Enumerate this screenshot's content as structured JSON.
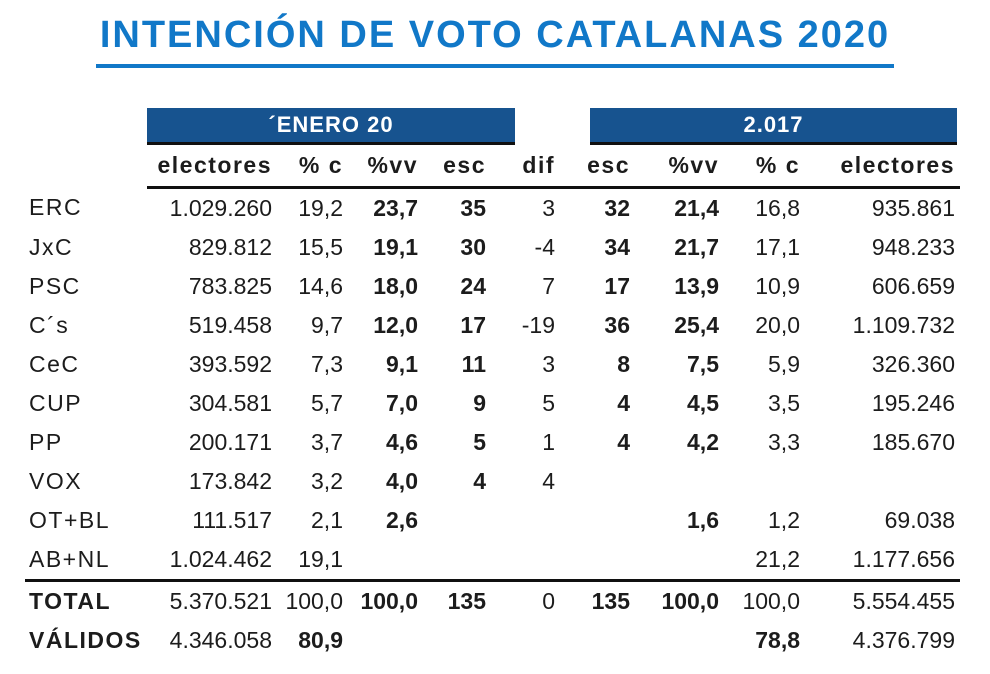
{
  "title": "INTENCIÓN DE VOTO CATALANAS 2020",
  "colors": {
    "accent_blue": "#1178c8",
    "band_navy": "#17538f",
    "rule_black": "#101010"
  },
  "bands": [
    {
      "label": "´ENERO 20"
    },
    {
      "label": "2.017"
    }
  ],
  "table": {
    "headers": [
      "electores",
      "% c",
      "%vv",
      "esc",
      "dif",
      "esc",
      "%vv",
      "% c",
      "electores"
    ],
    "bold_cols": [
      2,
      3,
      5,
      6
    ],
    "rows": [
      {
        "label": "ERC",
        "cells": [
          "1.029.260",
          "19,2",
          "23,7",
          "35",
          "3",
          "32",
          "21,4",
          "16,8",
          "935.861"
        ]
      },
      {
        "label": "JxC",
        "cells": [
          "829.812",
          "15,5",
          "19,1",
          "30",
          "-4",
          "34",
          "21,7",
          "17,1",
          "948.233"
        ]
      },
      {
        "label": "PSC",
        "cells": [
          "783.825",
          "14,6",
          "18,0",
          "24",
          "7",
          "17",
          "13,9",
          "10,9",
          "606.659"
        ]
      },
      {
        "label": "C´s",
        "cells": [
          "519.458",
          "9,7",
          "12,0",
          "17",
          "-19",
          "36",
          "25,4",
          "20,0",
          "1.109.732"
        ]
      },
      {
        "label": "CeC",
        "cells": [
          "393.592",
          "7,3",
          "9,1",
          "11",
          "3",
          "8",
          "7,5",
          "5,9",
          "326.360"
        ]
      },
      {
        "label": "CUP",
        "cells": [
          "304.581",
          "5,7",
          "7,0",
          "9",
          "5",
          "4",
          "4,5",
          "3,5",
          "195.246"
        ]
      },
      {
        "label": "PP",
        "cells": [
          "200.171",
          "3,7",
          "4,6",
          "5",
          "1",
          "4",
          "4,2",
          "3,3",
          "185.670"
        ]
      },
      {
        "label": "VOX",
        "cells": [
          "173.842",
          "3,2",
          "4,0",
          "4",
          "4",
          "",
          "",
          "",
          ""
        ]
      },
      {
        "label": "OT+BL",
        "cells": [
          "111.517",
          "2,1",
          "2,6",
          "",
          "",
          "",
          "1,6",
          "1,2",
          "69.038"
        ]
      },
      {
        "label": "AB+NL",
        "cells": [
          "1.024.462",
          "19,1",
          "",
          "",
          "",
          "",
          "",
          "21,2",
          "1.177.656"
        ]
      },
      {
        "label": "TOTAL",
        "bold_label": true,
        "rule_above": true,
        "cells": [
          "5.370.521",
          "100,0",
          "100,0",
          "135",
          "0",
          "135",
          "100,0",
          "100,0",
          "5.554.455"
        ]
      },
      {
        "label": "VÁLIDOS",
        "bold_label": true,
        "extra_bold": [
          1,
          7
        ],
        "cells": [
          "4.346.058",
          "80,9",
          "",
          "",
          "",
          "",
          "",
          "78,8",
          "4.376.799"
        ]
      }
    ]
  }
}
